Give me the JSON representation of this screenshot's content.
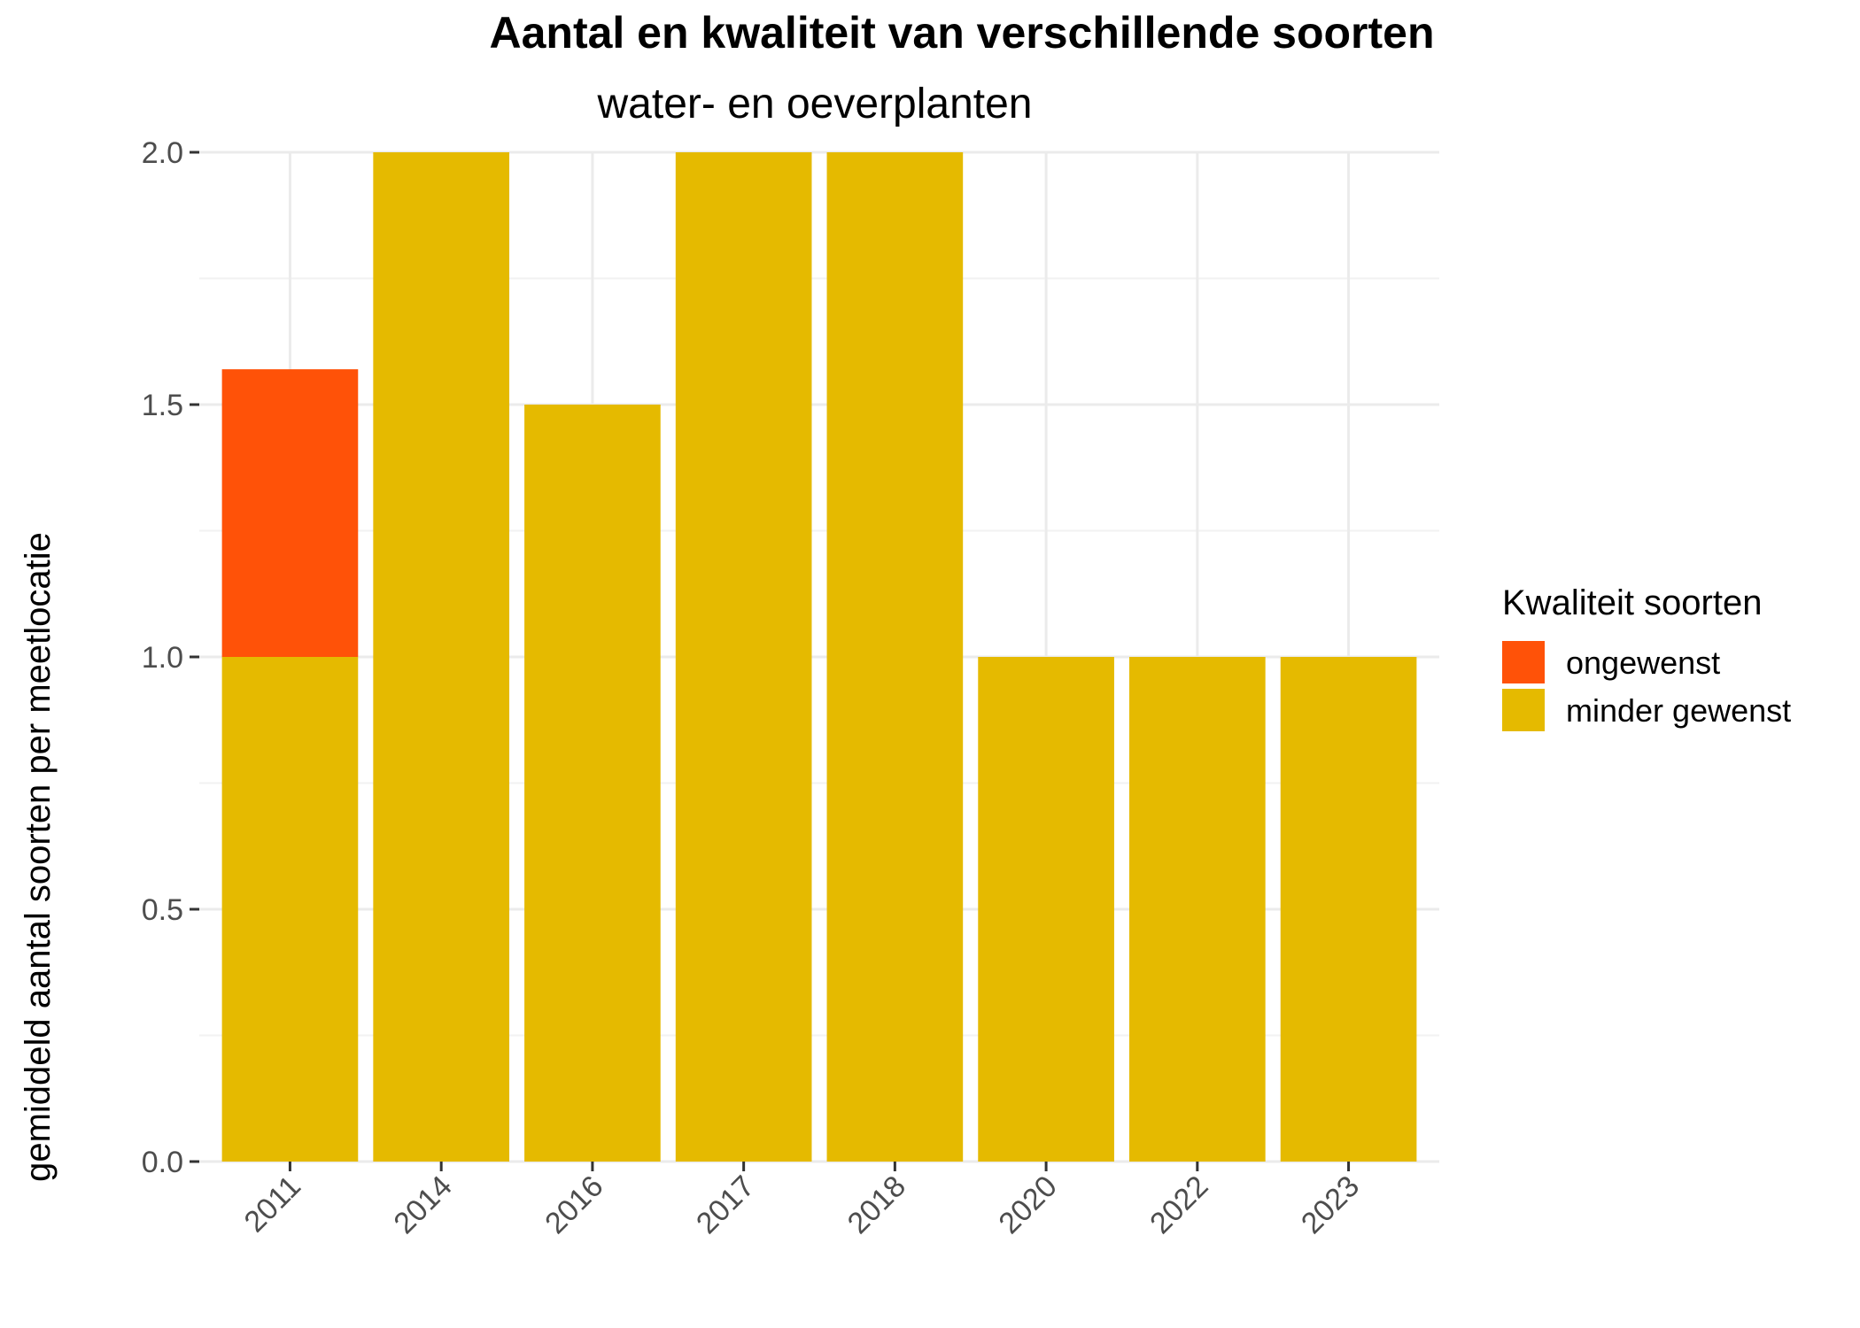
{
  "chart_data": {
    "type": "bar",
    "stacked": true,
    "title": "Aantal en kwaliteit van verschillende soorten",
    "subtitle": "water- en oeverplanten",
    "xlabel": "",
    "ylabel": "gemiddeld aantal soorten per meetlocatie",
    "categories": [
      "2011",
      "2014",
      "2016",
      "2017",
      "2018",
      "2020",
      "2022",
      "2023"
    ],
    "series": [
      {
        "name": "minder gewenst",
        "color": "#E5BA00",
        "values": [
          1.0,
          2.0,
          1.5,
          2.0,
          2.0,
          1.0,
          1.0,
          1.0
        ]
      },
      {
        "name": "ongewenst",
        "color": "#FF5208",
        "values": [
          0.57,
          0,
          0,
          0,
          0,
          0,
          0,
          0
        ]
      }
    ],
    "ylim": [
      0,
      2.0
    ],
    "yticks": [
      "0.0",
      "0.5",
      "1.0",
      "1.5",
      "2.0"
    ],
    "ytick_values": [
      0,
      0.5,
      1.0,
      1.5,
      2.0
    ],
    "grid": true,
    "legend": {
      "title": "Kwaliteit soorten",
      "position": "right",
      "entries": [
        {
          "label": "ongewenst",
          "color": "#FF5208"
        },
        {
          "label": "minder gewenst",
          "color": "#E5BA00"
        }
      ]
    }
  }
}
